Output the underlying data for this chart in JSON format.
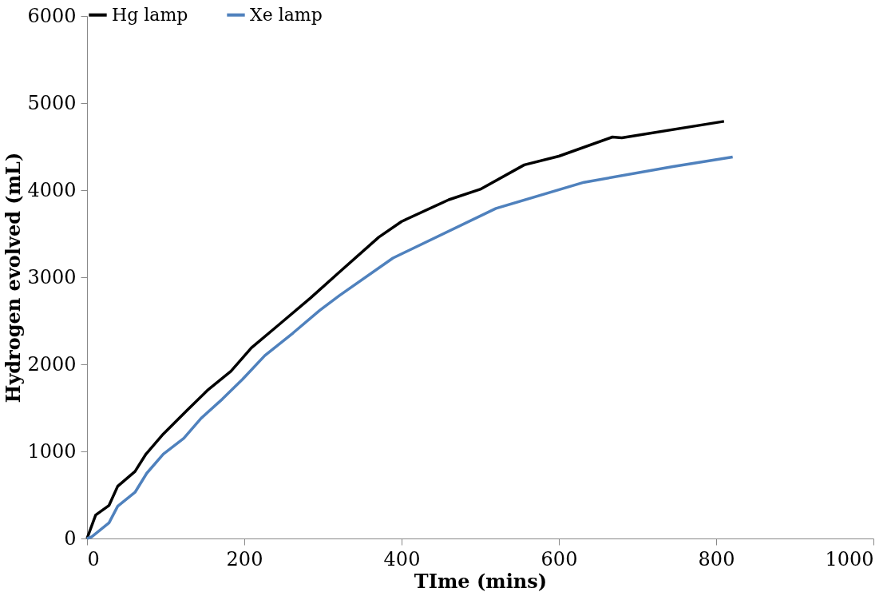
{
  "chart_data": {
    "type": "line",
    "xlabel": "TIme (mins)",
    "ylabel": "Hydrogen evolved  (mL)",
    "xlim": [
      0,
      1000
    ],
    "xticks": [
      0,
      200,
      400,
      600,
      800,
      1000
    ],
    "ylim": [
      0,
      6000
    ],
    "yticks": [
      0,
      1000,
      2000,
      3000,
      4000,
      5000,
      6000
    ],
    "grid": false,
    "legend": "top",
    "marker": "none",
    "line_style": "solid",
    "series": [
      {
        "name": "Hg lamp",
        "color": "#000000",
        "x": [
          0,
          11,
          28,
          39,
          61,
          75,
          97,
          127,
          153,
          183,
          209,
          246,
          284,
          321,
          371,
          400,
          460,
          500,
          556,
          600,
          668,
          680,
          810
        ],
        "values": [
          0,
          270,
          380,
          600,
          770,
          970,
          1200,
          1470,
          1700,
          1920,
          2190,
          2470,
          2760,
          3060,
          3460,
          3640,
          3890,
          4010,
          4290,
          4390,
          4610,
          4600,
          4790
        ]
      },
      {
        "name": "Xe lamp",
        "color": "#4f81bd",
        "x": [
          0,
          6,
          28,
          39,
          61,
          76,
          97,
          123,
          145,
          172,
          198,
          226,
          262,
          296,
          321,
          389,
          520,
          632,
          745,
          821
        ],
        "values": [
          0,
          20,
          180,
          370,
          530,
          750,
          970,
          1150,
          1380,
          1600,
          1830,
          2100,
          2360,
          2620,
          2790,
          3220,
          3790,
          4090,
          4270,
          4380
        ]
      }
    ]
  }
}
